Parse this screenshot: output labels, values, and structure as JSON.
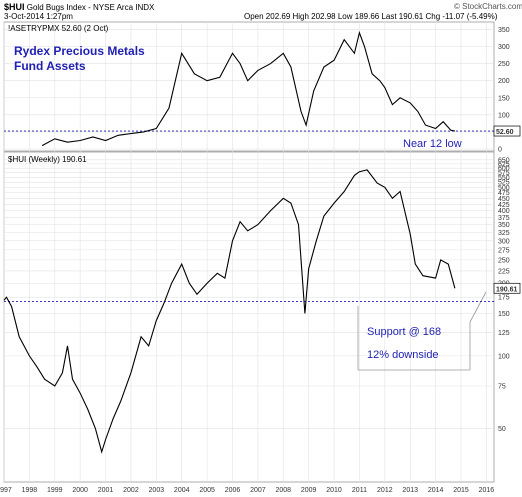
{
  "header": {
    "symbol": "$HUI",
    "name": "Gold Bugs Index - NYSE Arca INDX",
    "date": "3-Oct-2014 1:27pm",
    "ohlc": "Open 202.69  High 202.98  Low 189.66  Last 190.61  Chg -11.07 (-5.49%)",
    "watermark": "© StockCharts.com"
  },
  "chart_data": [
    {
      "type": "line",
      "panel": "top",
      "label": "!ASETRYPMX 52.60 (2 Oct)",
      "last_value_tag": "52.60",
      "ylim": [
        0,
        360
      ],
      "yticks": [
        0,
        50,
        100,
        150,
        200,
        250,
        300,
        350
      ],
      "reference_line": 52.6,
      "annotations": [
        "Rydex Precious Metals",
        "Fund Assets",
        "Near 12 low"
      ],
      "series": [
        {
          "x": [
            1998.5,
            1999.0,
            1999.5,
            2000.0,
            2000.5,
            2001.0,
            2001.5,
            2002.0,
            2002.5,
            2003.0,
            2003.5,
            2004.0,
            2004.5,
            2005.0,
            2005.5,
            2006.0,
            2006.3,
            2006.6,
            2007.0,
            2007.5,
            2008.0,
            2008.3,
            2008.7,
            2008.9,
            2009.2,
            2009.6,
            2010.0,
            2010.4,
            2010.8,
            2011.0,
            2011.2,
            2011.5,
            2011.8,
            2012.0,
            2012.3,
            2012.6,
            2013.0,
            2013.3,
            2013.6,
            2014.0,
            2014.3,
            2014.6,
            2014.76
          ],
          "values": [
            10,
            30,
            20,
            25,
            35,
            25,
            40,
            45,
            50,
            60,
            120,
            280,
            220,
            200,
            210,
            280,
            250,
            200,
            230,
            250,
            280,
            240,
            110,
            70,
            170,
            240,
            260,
            320,
            280,
            340,
            300,
            220,
            200,
            180,
            130,
            150,
            135,
            110,
            70,
            60,
            80,
            55,
            52.6
          ]
        }
      ]
    },
    {
      "type": "line",
      "panel": "bottom",
      "label": "$HUI (Weekly) 190.61",
      "last_value_tag": "190.61",
      "scale": "log",
      "ylim": [
        30,
        700
      ],
      "yticks": [
        50,
        75,
        100,
        125,
        150,
        175,
        200,
        225,
        250,
        275,
        300,
        325,
        350,
        375,
        400,
        425,
        450,
        475,
        500,
        525,
        550,
        575,
        600,
        625,
        650
      ],
      "xticks": [
        "1997",
        "1998",
        "1999",
        "2000",
        "2001",
        "2002",
        "2003",
        "2004",
        "2005",
        "2006",
        "2007",
        "2008",
        "2009",
        "2010",
        "2011",
        "2012",
        "2013",
        "2014",
        "2015",
        "2016"
      ],
      "reference_line": 168,
      "annotations": [
        "Support @ 168",
        "12% downside"
      ],
      "series": [
        {
          "x": [
            1997.0,
            1997.1,
            1997.3,
            1997.6,
            1998.0,
            1998.3,
            1998.6,
            1999.0,
            1999.3,
            1999.5,
            1999.7,
            2000.0,
            2000.3,
            2000.6,
            2000.85,
            2001.0,
            2001.3,
            2001.6,
            2002.0,
            2002.4,
            2002.7,
            2003.0,
            2003.3,
            2003.6,
            2004.0,
            2004.3,
            2004.6,
            2005.0,
            2005.4,
            2005.7,
            2006.0,
            2006.3,
            2006.6,
            2007.0,
            2007.5,
            2008.0,
            2008.3,
            2008.6,
            2008.85,
            2009.0,
            2009.3,
            2009.6,
            2010.0,
            2010.4,
            2010.8,
            2011.0,
            2011.3,
            2011.7,
            2012.0,
            2012.3,
            2012.6,
            2013.0,
            2013.2,
            2013.5,
            2014.0,
            2014.2,
            2014.5,
            2014.76
          ],
          "values": [
            170,
            175,
            160,
            120,
            100,
            90,
            80,
            75,
            85,
            110,
            80,
            70,
            60,
            50,
            40,
            45,
            55,
            65,
            85,
            120,
            110,
            140,
            165,
            200,
            240,
            200,
            180,
            200,
            220,
            210,
            300,
            360,
            330,
            350,
            400,
            450,
            430,
            350,
            150,
            230,
            300,
            380,
            430,
            480,
            560,
            580,
            590,
            520,
            500,
            450,
            480,
            320,
            240,
            215,
            210,
            250,
            240,
            190.61
          ]
        }
      ]
    }
  ]
}
